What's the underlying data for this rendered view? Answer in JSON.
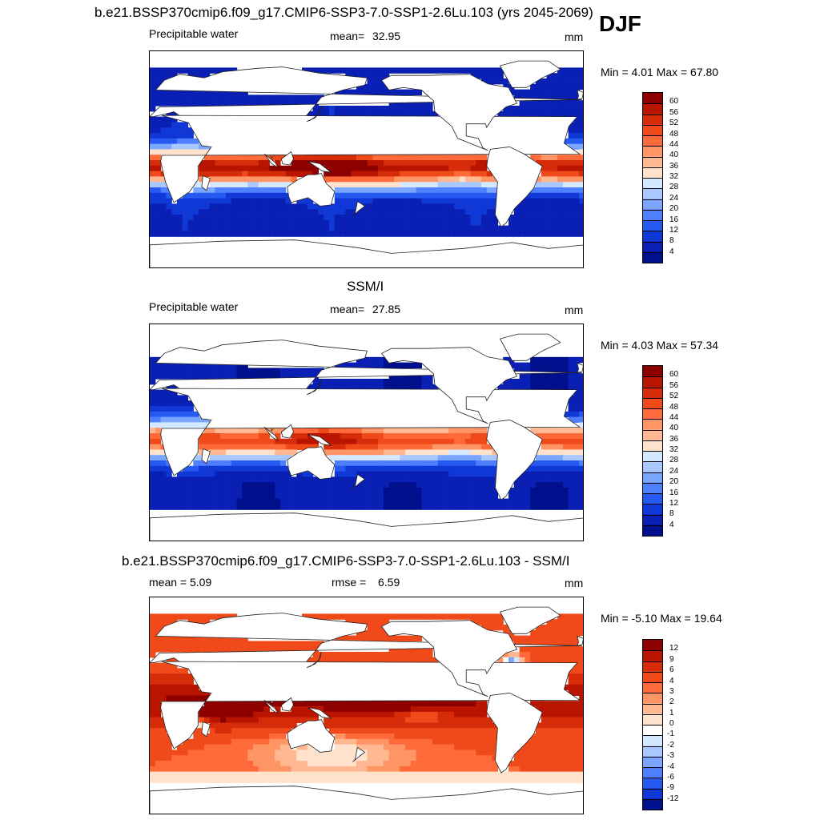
{
  "season": "DJF",
  "chart_data": [
    {
      "type": "heatmap",
      "title": "b.e21.BSSP370cmip6.f09_g17.CMIP6-SSP3-7.0-SSP1-2.6Lu.103 (yrs 2045-2069)",
      "variable": "Precipitable water",
      "stat_left": "",
      "stat_label": "mean=",
      "stat_value": "32.95",
      "units": "mm",
      "minmax_label": "Min =   4.01 Max =  67.80",
      "min": 4.01,
      "max": 67.8,
      "levels": [
        "60",
        "56",
        "52",
        "48",
        "44",
        "40",
        "36",
        "32",
        "28",
        "24",
        "20",
        "16",
        "12",
        "8",
        "4"
      ],
      "colors": [
        "#8c0000",
        "#b81400",
        "#d62c0a",
        "#f04a1a",
        "#ff6a3a",
        "#ff9465",
        "#ffb891",
        "#ffe2cc",
        "#d4e8ff",
        "#a8c8ff",
        "#7aa6ff",
        "#4d7fff",
        "#2659f2",
        "#1038d6",
        "#0a1fb3",
        "#000f8c"
      ]
    },
    {
      "type": "heatmap",
      "title": "SSM/I",
      "variable": "Precipitable water",
      "stat_left": "",
      "stat_label": "mean=",
      "stat_value": "27.85",
      "units": "mm",
      "minmax_label": "Min =   4.03 Max =  57.34",
      "min": 4.03,
      "max": 57.34,
      "levels": [
        "60",
        "56",
        "52",
        "48",
        "44",
        "40",
        "36",
        "32",
        "28",
        "24",
        "20",
        "16",
        "12",
        "8",
        "4"
      ],
      "colors": [
        "#8c0000",
        "#b81400",
        "#d62c0a",
        "#f04a1a",
        "#ff6a3a",
        "#ff9465",
        "#ffb891",
        "#ffe2cc",
        "#d4e8ff",
        "#a8c8ff",
        "#7aa6ff",
        "#4d7fff",
        "#2659f2",
        "#1038d6",
        "#0a1fb3",
        "#000f8c"
      ]
    },
    {
      "type": "heatmap",
      "title": "b.e21.BSSP370cmip6.f09_g17.CMIP6-SSP3-7.0-SSP1-2.6Lu.103 - SSM/I",
      "variable": "",
      "stat_left": "mean =   5.09",
      "stat_label": "rmse =",
      "stat_value": "6.59",
      "units": "mm",
      "minmax_label": "Min =  -5.10 Max =  19.64",
      "min": -5.1,
      "max": 19.64,
      "levels": [
        "12",
        "9",
        "6",
        "4",
        "3",
        "2",
        "1",
        "0",
        "-1",
        "-2",
        "-3",
        "-4",
        "-6",
        "-9",
        "-12"
      ],
      "colors": [
        "#8c0000",
        "#b81400",
        "#d62c0a",
        "#f04a1a",
        "#ff6a3a",
        "#ff9465",
        "#ffb891",
        "#ffe2cc",
        "#ffffff",
        "#d4e8ff",
        "#a8c8ff",
        "#7aa6ff",
        "#4d7fff",
        "#2659f2",
        "#1038d6",
        "#000f8c"
      ]
    }
  ]
}
